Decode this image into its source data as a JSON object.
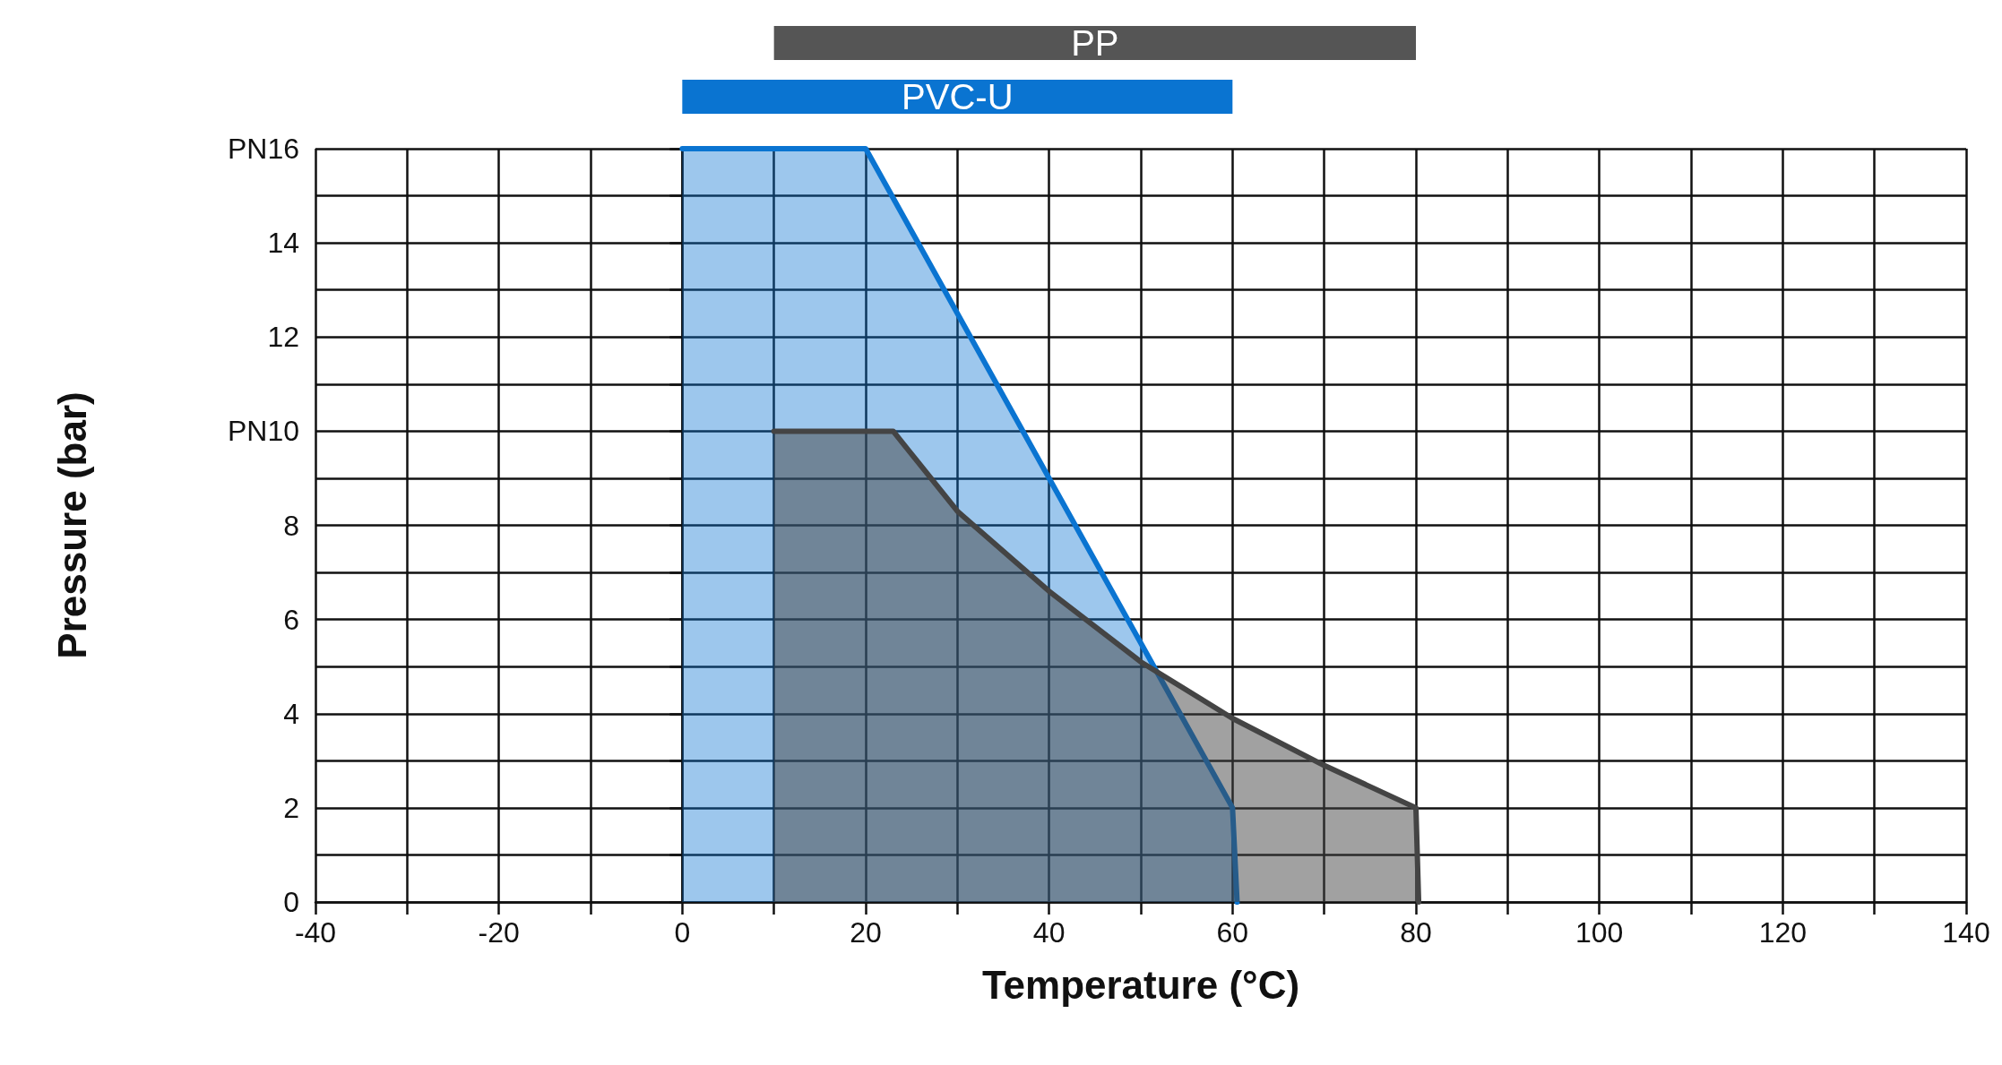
{
  "chart_data": [
    {
      "type": "bar",
      "orientation": "horizontal",
      "categories": [
        "PP",
        "PVC-U"
      ],
      "base": [
        10,
        0
      ],
      "values": [
        70,
        60
      ],
      "colors": [
        "#555555",
        "#0a74d1"
      ],
      "xlim": [
        -40,
        140
      ],
      "tick_labels": false
    },
    {
      "type": "area",
      "xlabel": "Temperature (°C)",
      "ylabel": "Pressure (bar)",
      "xlim": [
        -40,
        140
      ],
      "xticks": [
        -40,
        {
          "value": -30,
          "label": null
        },
        -20,
        {
          "value": -10,
          "label": null
        },
        0,
        {
          "value": 10,
          "label": null
        },
        20,
        {
          "value": 30,
          "label": null
        },
        40,
        {
          "value": 50,
          "label": null
        },
        60,
        {
          "value": 70,
          "label": null
        },
        80,
        {
          "value": 90,
          "label": null
        },
        100,
        {
          "value": 110,
          "label": null
        },
        120,
        {
          "value": 130,
          "label": null
        },
        140
      ],
      "ylim": [
        0,
        16
      ],
      "yticks": [
        0,
        {
          "value": 1,
          "label": null
        },
        2,
        {
          "value": 3,
          "label": null
        },
        4,
        {
          "value": 5,
          "label": null
        },
        6,
        {
          "value": 7,
          "label": null
        },
        8,
        {
          "value": 9,
          "label": null
        },
        {
          "value": 10,
          "label": "PN10"
        },
        {
          "value": 11,
          "label": null
        },
        12,
        {
          "value": 13,
          "label": null
        },
        14,
        {
          "value": 15,
          "label": null
        },
        {
          "value": 16,
          "label": "PN16"
        }
      ],
      "grid": true,
      "marker": "none",
      "line_style": "solid",
      "series": [
        {
          "color": "#0a74d1",
          "x": [
            0,
            20,
            60,
            60.5
          ],
          "values": [
            16,
            16,
            2,
            0
          ]
        },
        {
          "color": "#444444",
          "x": [
            10,
            23,
            30,
            40,
            50,
            60,
            70,
            80,
            80.3
          ],
          "values": [
            10,
            10,
            8.3,
            6.6,
            5.1,
            3.9,
            2.9,
            2,
            0
          ]
        }
      ]
    }
  ]
}
